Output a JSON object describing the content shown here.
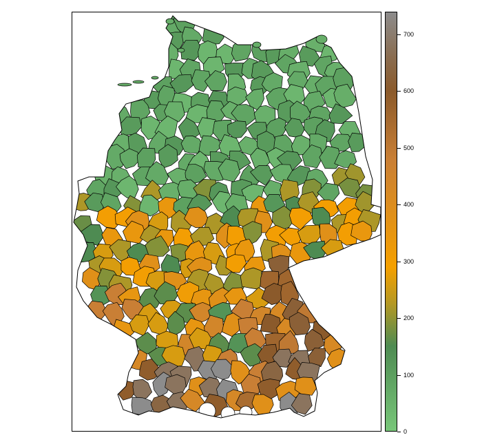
{
  "colors": {
    "stops": [
      {
        "value": 0,
        "color": "#78c679"
      },
      {
        "value": 150,
        "color": "#4e8b52"
      },
      {
        "value": 225,
        "color": "#b49824"
      },
      {
        "value": 290,
        "color": "#f5a000"
      },
      {
        "value": 480,
        "color": "#c97f35"
      },
      {
        "value": 600,
        "color": "#8b5a2b"
      },
      {
        "value": 660,
        "color": "#8a6c4f"
      },
      {
        "value": 740,
        "color": "#8c8c8c"
      }
    ],
    "outline": "#000000",
    "no_data": "#ffffff"
  },
  "legend": {
    "min": 0,
    "max": 740,
    "ticks": [
      "0",
      "100",
      "200",
      "300",
      "400",
      "500",
      "600",
      "700"
    ]
  },
  "map": {
    "country": "Germany",
    "unit": "district (Landkreis)",
    "region_values": {
      "north": [
        40,
        55,
        60,
        70,
        85,
        95,
        110,
        120
      ],
      "central": [
        150,
        190,
        220,
        260,
        300,
        340,
        380
      ],
      "southwest": [
        130,
        160,
        260,
        310,
        350,
        420
      ],
      "southeast": [
        380,
        430,
        480,
        540,
        590,
        640,
        680,
        740
      ]
    }
  }
}
